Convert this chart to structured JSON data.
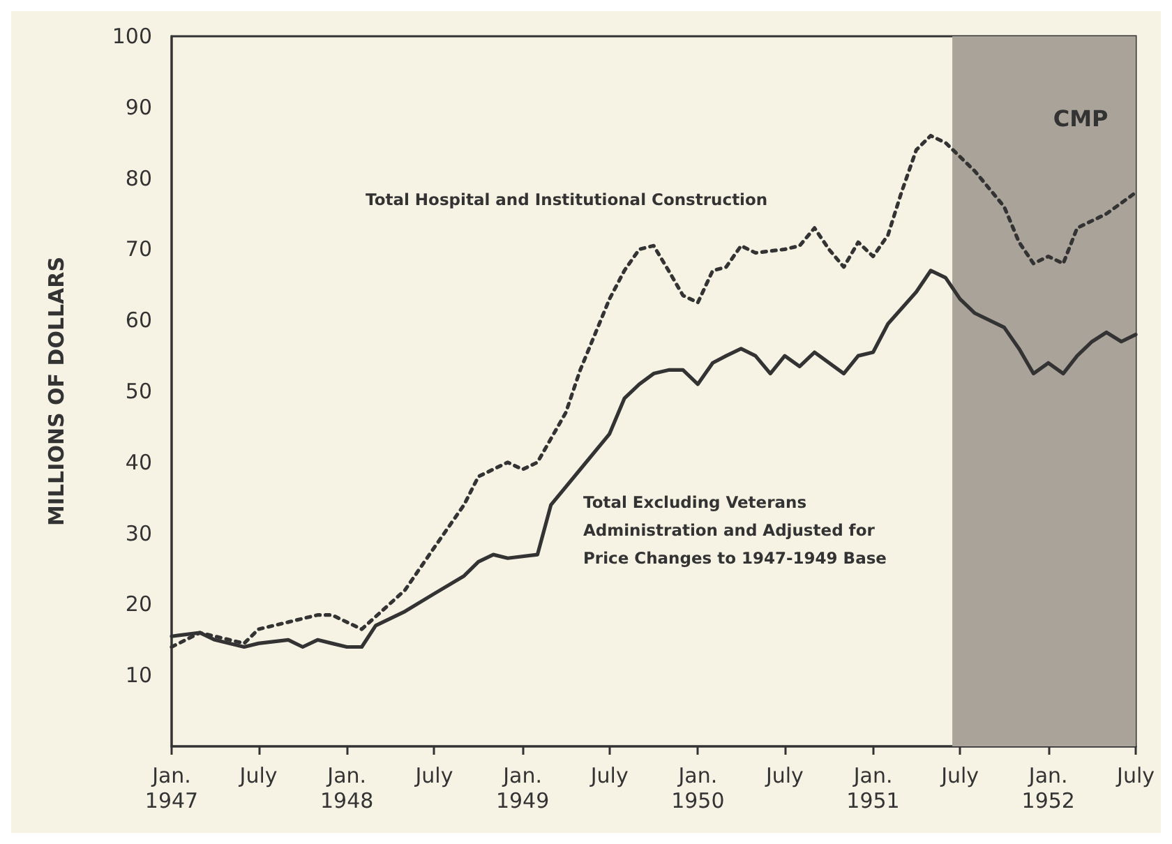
{
  "chart_data": {
    "type": "line",
    "ylabel": "MILLIONS OF DOLLARS",
    "xlim": [
      "1947-01",
      "1952-07"
    ],
    "xticks": [
      {
        "value": "1947-01",
        "label": "Jan.\n1947"
      },
      {
        "value": "1947-07",
        "label": "July"
      },
      {
        "value": "1948-01",
        "label": "Jan.\n1948"
      },
      {
        "value": "1948-07",
        "label": "July"
      },
      {
        "value": "1949-01",
        "label": "Jan.\n1949"
      },
      {
        "value": "1949-07",
        "label": "July"
      },
      {
        "value": "1950-01",
        "label": "Jan.\n1950"
      },
      {
        "value": "1950-07",
        "label": "July"
      },
      {
        "value": "1951-01",
        "label": "Jan.\n1951"
      },
      {
        "value": "1951-07",
        "label": "July"
      },
      {
        "value": "1952-01",
        "label": "Jan.\n1952"
      },
      {
        "value": "1952-07",
        "label": "July"
      }
    ],
    "ylim": [
      0,
      100
    ],
    "yticks": [
      10,
      20,
      30,
      40,
      50,
      60,
      70,
      80,
      90,
      100
    ],
    "grid": false,
    "marker": "none",
    "series": [
      {
        "name": "Total Hospital and Institutional Construction",
        "color": "#333333",
        "line_style": "dotted",
        "x": [
          "1947-01",
          "1947-03",
          "1947-04",
          "1947-06",
          "1947-07",
          "1947-09",
          "1947-11",
          "1947-12",
          "1948-02",
          "1948-05",
          "1948-07",
          "1948-09",
          "1948-10",
          "1948-12",
          "1949-01",
          "1949-02",
          "1949-04",
          "1949-05",
          "1949-07",
          "1949-08",
          "1949-09",
          "1949-10",
          "1949-11",
          "1949-12",
          "1950-01",
          "1950-02",
          "1950-03",
          "1950-04",
          "1950-05",
          "1950-07",
          "1950-08",
          "1950-09",
          "1950-10",
          "1950-11",
          "1950-12",
          "1951-01",
          "1951-02",
          "1951-03",
          "1951-04",
          "1951-05",
          "1951-06",
          "1951-08",
          "1951-10",
          "1951-11",
          "1951-12",
          "1952-01",
          "1952-02",
          "1952-03",
          "1952-05",
          "1952-07"
        ],
        "values": [
          14,
          16,
          15.5,
          14.5,
          16.5,
          17.5,
          18.5,
          18.5,
          16.5,
          22,
          28,
          34,
          38,
          40,
          39,
          40,
          47,
          53,
          63,
          67,
          70,
          70.5,
          67,
          63.5,
          62.5,
          67,
          67.5,
          70.5,
          69.5,
          70,
          70.5,
          73,
          70,
          67.5,
          71,
          69,
          72,
          78,
          84,
          86,
          85,
          81,
          76,
          71,
          68,
          69,
          68,
          73,
          75,
          78
        ]
      },
      {
        "name": "Total Excluding Veterans\nAdministration and Adjusted for\nPrice Changes to 1947-1949 Base",
        "color": "#333333",
        "line_style": "solid",
        "x": [
          "1947-01",
          "1947-03",
          "1947-04",
          "1947-06",
          "1947-07",
          "1947-09",
          "1947-10",
          "1947-11",
          "1947-12",
          "1948-01",
          "1948-02",
          "1948-03",
          "1948-05",
          "1948-07",
          "1948-09",
          "1948-10",
          "1948-11",
          "1948-12",
          "1949-02",
          "1949-03",
          "1949-05",
          "1949-07",
          "1949-08",
          "1949-09",
          "1949-10",
          "1949-11",
          "1949-12",
          "1950-01",
          "1950-02",
          "1950-03",
          "1950-04",
          "1950-05",
          "1950-06",
          "1950-07",
          "1950-08",
          "1950-09",
          "1950-11",
          "1950-12",
          "1951-01",
          "1951-02",
          "1951-04",
          "1951-05",
          "1951-06",
          "1951-07",
          "1951-08",
          "1951-10",
          "1951-11",
          "1951-12",
          "1952-01",
          "1952-02",
          "1952-03",
          "1952-04",
          "1952-05",
          "1952-06",
          "1952-07"
        ],
        "values": [
          15.5,
          16,
          15,
          14,
          14.5,
          15,
          14,
          15,
          14.5,
          14,
          14,
          17,
          19,
          21.5,
          24,
          26,
          27,
          26.5,
          27,
          34,
          39,
          44,
          49,
          51,
          52.5,
          53,
          53,
          51,
          54,
          55,
          56,
          55,
          52.5,
          55,
          53.5,
          55.5,
          52.5,
          55,
          55.5,
          59.5,
          64,
          67,
          66,
          63,
          61,
          59,
          56,
          52.5,
          54,
          52.5,
          55,
          57,
          58.3,
          57,
          58
        ]
      }
    ],
    "bands": [
      {
        "axis": "x",
        "from": "1951-06-15",
        "to": "1952-07",
        "label": "CMP",
        "color": "#a9a39a"
      }
    ]
  }
}
